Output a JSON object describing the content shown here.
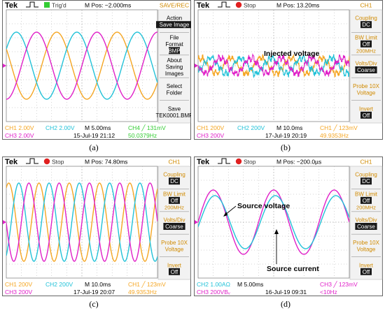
{
  "colors": {
    "ch1": "#f5a623",
    "ch2": "#22c2d8",
    "ch3": "#e020c8",
    "ch4": "#33cc33",
    "topbar": "#ffffff",
    "screen_bg": "#ffffff",
    "grid": "#a8a8a8",
    "side_bg": "#f2f2f2",
    "side_text": "#d08a00",
    "dark_btn": "#1a1a1a"
  },
  "panels": [
    {
      "id": "a",
      "caption": "(a)",
      "header": {
        "brand": "Tek",
        "status": "Trig'd",
        "status_color": "#33cc33",
        "mpos": "M Pos: −2.000ms",
        "title": "SAVE/REC"
      },
      "side_menu": [
        {
          "label": "Action",
          "value": "Save Image"
        },
        {
          "label": "File Format",
          "value": "BMP"
        },
        {
          "label": "About Saving Images",
          "value": ""
        },
        {
          "label": "Select Folder",
          "value": ""
        },
        {
          "label": "Save TEK0001.BMP",
          "value": ""
        }
      ],
      "footer": {
        "row1": [
          {
            "text": "CH1  2.00V",
            "ch": "ch1"
          },
          {
            "text": "CH2  2.00V",
            "ch": "ch2"
          },
          {
            "text": "M 5.00ms",
            "ch": "none"
          },
          {
            "text": "CH4 ╱ 131mV",
            "ch": "ch4"
          }
        ],
        "row2": [
          {
            "text": "CH3  2.00V",
            "ch": "ch3"
          },
          {
            "text": "15-Jul-19 21:12",
            "ch": "none"
          },
          {
            "text": "50.0379Hz",
            "ch": "ch4"
          }
        ]
      },
      "annotations": []
    },
    {
      "id": "b",
      "caption": "(b)",
      "header": {
        "brand": "Tek",
        "status": "Stop",
        "status_color": "#e02020",
        "mpos": "M Pos: 13.20ms",
        "title": "CH1"
      },
      "side_menu": [
        {
          "label": "Coupling",
          "value": "DC"
        },
        {
          "label": "BW Limit",
          "value": "Off",
          "sub": "200MHz"
        },
        {
          "label": "Volts/Div",
          "value": "Coarse"
        },
        {
          "label": "Probe 10X Voltage",
          "value": ""
        },
        {
          "label": "Invert",
          "value": "Off"
        }
      ],
      "footer": {
        "row1": [
          {
            "text": "CH1  200V",
            "ch": "ch1"
          },
          {
            "text": "CH2  200V",
            "ch": "ch2"
          },
          {
            "text": "M 10.0ms",
            "ch": "none"
          },
          {
            "text": "CH1 ╱ 123mV",
            "ch": "ch1"
          }
        ],
        "row2": [
          {
            "text": "CH3  200V",
            "ch": "ch3"
          },
          {
            "text": "17-Jul-19 20:19",
            "ch": "none"
          },
          {
            "text": "49.9353Hz",
            "ch": "ch1"
          }
        ]
      },
      "annotations": [
        {
          "text": "Injected voltage"
        }
      ]
    },
    {
      "id": "c",
      "caption": "(c)",
      "header": {
        "brand": "Tek",
        "status": "Stop",
        "status_color": "#e02020",
        "mpos": "M Pos: 74.80ms",
        "title": "CH1"
      },
      "side_menu": [
        {
          "label": "Coupling",
          "value": "DC"
        },
        {
          "label": "BW Limit",
          "value": "Off",
          "sub": "200MHz"
        },
        {
          "label": "Volts/Div",
          "value": "Coarse"
        },
        {
          "label": "Probe 10X Voltage",
          "value": ""
        },
        {
          "label": "Invert",
          "value": "Off"
        }
      ],
      "footer": {
        "row1": [
          {
            "text": "CH1  200V",
            "ch": "ch1"
          },
          {
            "text": "CH2  200V",
            "ch": "ch2"
          },
          {
            "text": "M 10.0ms",
            "ch": "none"
          },
          {
            "text": "CH1 ╱ 123mV",
            "ch": "ch1"
          }
        ],
        "row2": [
          {
            "text": "CH3  200V",
            "ch": "ch3"
          },
          {
            "text": "17-Jul-19 20:07",
            "ch": "none"
          },
          {
            "text": "49.9353Hz",
            "ch": "ch1"
          }
        ]
      },
      "annotations": []
    },
    {
      "id": "d",
      "caption": "(d)",
      "header": {
        "brand": "Tek",
        "status": "Stop",
        "status_color": "#e02020",
        "mpos": "M Pos: −200.0µs",
        "title": "CH1"
      },
      "side_menu": [
        {
          "label": "Coupling",
          "value": "DC"
        },
        {
          "label": "BW Limit",
          "value": "Off",
          "sub": "200MHz"
        },
        {
          "label": "Volts/Div",
          "value": "Coarse"
        },
        {
          "label": "Probe 10X Voltage",
          "value": ""
        },
        {
          "label": "Invert",
          "value": "Off"
        }
      ],
      "footer": {
        "row1": [
          {
            "text": "CH2  1.00AΩ",
            "ch": "ch2"
          },
          {
            "text": "M 5.00ms",
            "ch": "none"
          },
          {
            "text": "CH3 ╱ 123mV",
            "ch": "ch3"
          }
        ],
        "row2": [
          {
            "text": "CH3  200VBᵥ",
            "ch": "ch3"
          },
          {
            "text": "16-Jul-19 09:31",
            "ch": "none"
          },
          {
            "text": "<10Hz",
            "ch": "ch3"
          }
        ]
      },
      "annotations": [
        {
          "text": "Source voltage"
        },
        {
          "text": "Source current"
        }
      ]
    }
  ],
  "chart_data": [
    {
      "type": "line",
      "panel": "a",
      "x_unit": "ms",
      "x_range": [
        -25,
        25
      ],
      "y_unit": "V",
      "ylim": [
        -8,
        8
      ],
      "grid": true,
      "series": [
        {
          "channel": "CH1",
          "color": "#f5a623",
          "frequency_hz": 50.0379,
          "amplitude_div": 2.4,
          "offset_div": 0,
          "phase_deg": 240
        },
        {
          "channel": "CH2",
          "color": "#22c2d8",
          "frequency_hz": 50.0379,
          "amplitude_div": 2.4,
          "offset_div": 0,
          "phase_deg": 120
        },
        {
          "channel": "CH3",
          "color": "#e020c8",
          "frequency_hz": 50.0379,
          "amplitude_div": 2.4,
          "offset_div": 0,
          "phase_deg": 0
        }
      ]
    },
    {
      "type": "line",
      "panel": "b",
      "x_unit": "ms",
      "x_range": [
        -50,
        50
      ],
      "y_unit": "V",
      "ylim": [
        -800,
        800
      ],
      "grid": true,
      "series": [
        {
          "channel": "CH1",
          "color": "#f5a623",
          "frequency_hz": 49.9353,
          "amplitude_div": 0.55,
          "offset_div": 0,
          "phase_deg": 240,
          "noisy": true
        },
        {
          "channel": "CH2",
          "color": "#22c2d8",
          "frequency_hz": 49.9353,
          "amplitude_div": 0.55,
          "offset_div": 0,
          "phase_deg": 120,
          "noisy": true
        },
        {
          "channel": "CH3",
          "color": "#e020c8",
          "frequency_hz": 49.9353,
          "amplitude_div": 0.55,
          "offset_div": 0,
          "phase_deg": 0,
          "noisy": true
        }
      ]
    },
    {
      "type": "line",
      "panel": "c",
      "x_unit": "ms",
      "x_range": [
        -50,
        50
      ],
      "y_unit": "V",
      "ylim": [
        -800,
        800
      ],
      "grid": true,
      "series": [
        {
          "channel": "CH1",
          "color": "#f5a623",
          "frequency_hz": 49.9353,
          "amplitude_div": 2.8,
          "offset_div": 0,
          "phase_deg": 240
        },
        {
          "channel": "CH2",
          "color": "#22c2d8",
          "frequency_hz": 49.9353,
          "amplitude_div": 2.8,
          "offset_div": 0,
          "phase_deg": 120
        },
        {
          "channel": "CH3",
          "color": "#e020c8",
          "frequency_hz": 49.9353,
          "amplitude_div": 2.8,
          "offset_div": 0,
          "phase_deg": 0
        }
      ]
    },
    {
      "type": "line",
      "panel": "d",
      "x_unit": "ms",
      "x_range": [
        -25,
        25
      ],
      "y_unit": "V / A",
      "ylim": [
        -8,
        8
      ],
      "grid": true,
      "series": [
        {
          "channel": "CH3",
          "label": "Source voltage",
          "color": "#e020c8",
          "frequency_hz": 50,
          "amplitude_div": 2.3,
          "offset_div": 0,
          "phase_deg": 90
        },
        {
          "channel": "CH2",
          "label": "Source current",
          "color": "#22c2d8",
          "frequency_hz": 50,
          "amplitude_div": 1.9,
          "offset_div": 0,
          "phase_deg": 80
        }
      ]
    }
  ]
}
